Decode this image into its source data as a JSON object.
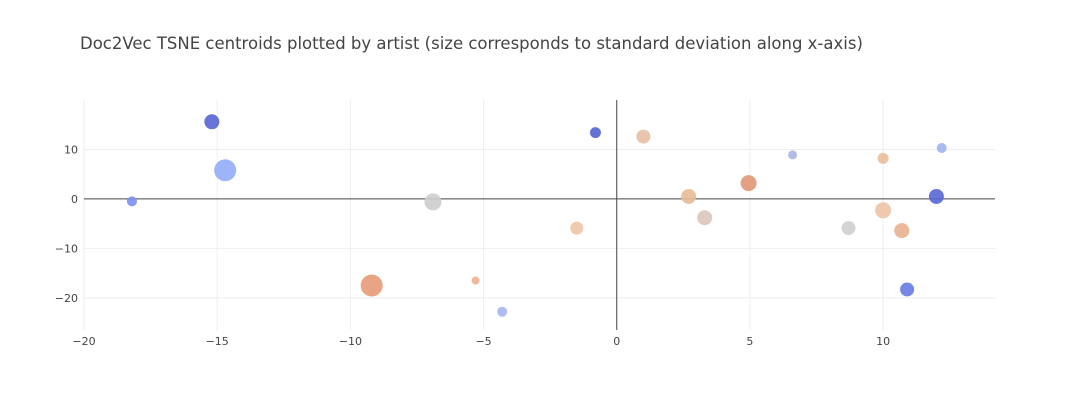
{
  "chart_data": {
    "type": "scatter",
    "title": "Doc2Vec TSNE centroids plotted by artist (size corresponds to standard deviation along x-axis)",
    "xlabel": "",
    "ylabel": "",
    "xlim": [
      -20,
      14.2
    ],
    "ylim": [
      -26.5,
      20
    ],
    "x_ticks": [
      -20,
      -15,
      -10,
      -5,
      0,
      5,
      10
    ],
    "x_tick_labels": [
      "−20",
      "−15",
      "−10",
      "−5",
      "0",
      "5",
      "10"
    ],
    "y_ticks": [
      -20,
      -10,
      0,
      10
    ],
    "y_tick_labels": [
      "−20",
      "−10",
      "0",
      "10"
    ],
    "grid": true,
    "zero_lines": true,
    "legend": "none",
    "points": [
      {
        "x": -18.2,
        "y": -0.5,
        "size": 10,
        "color": "#7b8ff0"
      },
      {
        "x": -15.2,
        "y": 15.6,
        "size": 15,
        "color": "#5664d2"
      },
      {
        "x": -14.7,
        "y": 5.8,
        "size": 22,
        "color": "#94acf8"
      },
      {
        "x": -9.2,
        "y": -17.5,
        "size": 22,
        "color": "#e59a77"
      },
      {
        "x": -6.9,
        "y": -0.6,
        "size": 17,
        "color": "#cdcdcd"
      },
      {
        "x": -5.3,
        "y": -16.5,
        "size": 8,
        "color": "#eeaf8f"
      },
      {
        "x": -4.3,
        "y": -22.8,
        "size": 10,
        "color": "#a5b5f0"
      },
      {
        "x": -1.5,
        "y": -5.9,
        "size": 13,
        "color": "#ecc4a6"
      },
      {
        "x": -0.8,
        "y": 13.4,
        "size": 11,
        "color": "#5463d0"
      },
      {
        "x": 1.0,
        "y": 12.6,
        "size": 14,
        "color": "#e6bfa3"
      },
      {
        "x": 2.7,
        "y": 0.5,
        "size": 15,
        "color": "#e8bb98"
      },
      {
        "x": 3.3,
        "y": -3.8,
        "size": 15,
        "color": "#dac7ba"
      },
      {
        "x": 4.95,
        "y": 3.2,
        "size": 16,
        "color": "#df9774"
      },
      {
        "x": 6.6,
        "y": 8.9,
        "size": 9,
        "color": "#a9b6e6"
      },
      {
        "x": 8.7,
        "y": -5.9,
        "size": 14,
        "color": "#cfcfd3"
      },
      {
        "x": 10.0,
        "y": 8.2,
        "size": 11,
        "color": "#e9bc9b"
      },
      {
        "x": 10.0,
        "y": -2.3,
        "size": 16,
        "color": "#edc3a5"
      },
      {
        "x": 10.7,
        "y": -6.4,
        "size": 15,
        "color": "#e9b18f"
      },
      {
        "x": 10.9,
        "y": -18.3,
        "size": 14,
        "color": "#6679e2"
      },
      {
        "x": 12.0,
        "y": 0.5,
        "size": 15,
        "color": "#5667d4"
      },
      {
        "x": 12.2,
        "y": 10.3,
        "size": 10,
        "color": "#9eb2f0"
      }
    ]
  }
}
